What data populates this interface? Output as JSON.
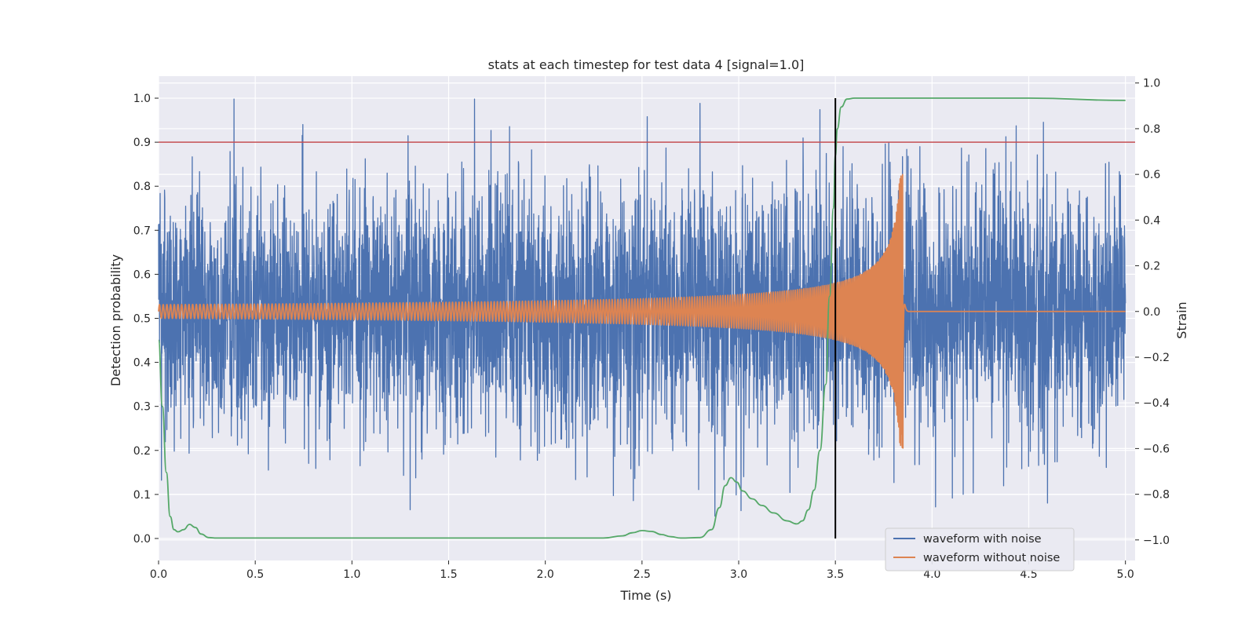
{
  "chart_data": {
    "type": "line",
    "title": "stats at each timestep for test data 4 [signal=1.0]",
    "xlabel": "Time (s)",
    "ylabel_left": "Detection probability",
    "ylabel_right": "Strain",
    "xlim": [
      0.0,
      5.05
    ],
    "ylim_left": [
      -0.05,
      1.05
    ],
    "ylim_right": [
      -1.09,
      1.03
    ],
    "x_ticks": [
      "0.0",
      "0.5",
      "1.0",
      "1.5",
      "2.0",
      "2.5",
      "3.0",
      "3.5",
      "4.0",
      "4.5",
      "5.0"
    ],
    "x_tick_values": [
      0.0,
      0.5,
      1.0,
      1.5,
      2.0,
      2.5,
      3.0,
      3.5,
      4.0,
      4.5,
      5.0
    ],
    "y_ticks_left": [
      "0.0",
      "0.1",
      "0.2",
      "0.3",
      "0.4",
      "0.5",
      "0.6",
      "0.7",
      "0.8",
      "0.9",
      "1.0"
    ],
    "y_tick_values_left": [
      0.0,
      0.1,
      0.2,
      0.3,
      0.4,
      0.5,
      0.6,
      0.7,
      0.8,
      0.9,
      1.0
    ],
    "y_ticks_right": [
      "−1.0",
      "−0.8",
      "−0.6",
      "−0.4",
      "−0.2",
      "0.0",
      "0.2",
      "0.4",
      "0.6",
      "0.8",
      "1.0"
    ],
    "y_tick_values_right": [
      -1.0,
      -0.8,
      -0.6,
      -0.4,
      -0.2,
      0.0,
      0.2,
      0.4,
      0.6,
      0.8,
      1.0
    ],
    "grid": true,
    "legend_position": "lower right",
    "threshold": {
      "value": 0.9,
      "color": "#c44e52"
    },
    "event_marker": {
      "x": 3.5,
      "color": "#000000"
    },
    "merger_time": 3.85,
    "series": [
      {
        "name": "waveform with noise",
        "axis": "right",
        "color": "#4c72b0",
        "kind": "noise",
        "noise_std": 0.27,
        "peak_range": [
          -0.96,
          0.93
        ]
      },
      {
        "name": "waveform without noise",
        "axis": "right",
        "color": "#dd8452",
        "kind": "chirp",
        "amplitude_start": 0.03,
        "amplitude_peak": 0.6,
        "ringdown_after": 3.85
      },
      {
        "axis": "left",
        "color": "#55a868",
        "kind": "probability",
        "x": [
          0.0,
          0.02,
          0.04,
          0.06,
          0.08,
          0.1,
          0.13,
          0.16,
          0.19,
          0.22,
          0.26,
          0.3,
          0.5,
          1.0,
          1.5,
          2.0,
          2.3,
          2.4,
          2.45,
          2.5,
          2.55,
          2.6,
          2.65,
          2.7,
          2.8,
          2.86,
          2.9,
          2.93,
          2.96,
          2.99,
          3.02,
          3.07,
          3.12,
          3.18,
          3.25,
          3.3,
          3.33,
          3.36,
          3.39,
          3.42,
          3.45,
          3.47,
          3.49,
          3.5,
          3.51,
          3.53,
          3.56,
          3.6,
          4.0,
          4.5,
          5.0
        ],
        "y": [
          0.45,
          0.3,
          0.15,
          0.05,
          0.02,
          0.015,
          0.02,
          0.032,
          0.025,
          0.01,
          0.002,
          0.001,
          0.001,
          0.001,
          0.001,
          0.001,
          0.001,
          0.006,
          0.013,
          0.018,
          0.016,
          0.009,
          0.004,
          0.001,
          0.002,
          0.02,
          0.07,
          0.12,
          0.138,
          0.128,
          0.108,
          0.09,
          0.075,
          0.058,
          0.04,
          0.033,
          0.04,
          0.065,
          0.11,
          0.2,
          0.35,
          0.55,
          0.75,
          0.87,
          0.93,
          0.98,
          0.998,
          1.0,
          1.0,
          1.0,
          0.995
        ]
      }
    ],
    "legend": [
      "waveform with noise",
      "waveform without noise"
    ]
  }
}
